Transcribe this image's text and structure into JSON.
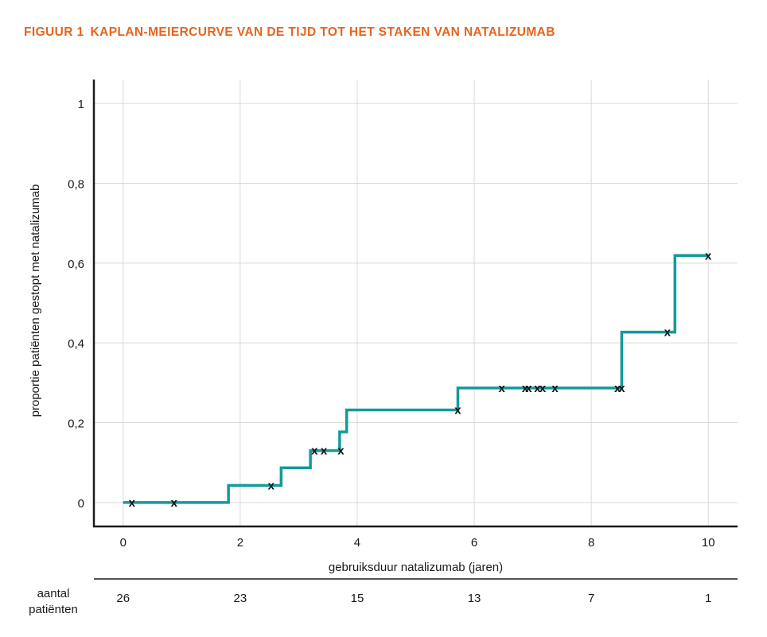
{
  "figure": {
    "label": "FIGUUR 1",
    "title": "KAPLAN-MEIERCURVE VAN DE TIJD TOT HET STAKEN VAN NATALIZUMAB"
  },
  "colors": {
    "accent": "#e8641e",
    "curve": "#139a9a",
    "grid": "#d9d9d9",
    "axis": "#1a1a1a"
  },
  "chart_data": {
    "type": "line",
    "style": "step",
    "grid": true,
    "xlabel": "gebruiksduur natalizumab (jaren)",
    "ylabel": "proportie patiënten gestopt met natalizumab",
    "xlim": [
      -0.5,
      10.5
    ],
    "ylim": [
      -0.06,
      1.06
    ],
    "x_ticks": [
      0,
      2,
      4,
      6,
      8,
      10
    ],
    "x_tick_labels": [
      "0",
      "2",
      "4",
      "6",
      "8",
      "10"
    ],
    "y_ticks": [
      0,
      0.2,
      0.4,
      0.6,
      0.8,
      1
    ],
    "y_tick_labels": [
      "0",
      "0,2",
      "0,4",
      "0,6",
      "0,8",
      "1"
    ],
    "series": [
      {
        "x": [
          0,
          1.8,
          2.7,
          3.2,
          3.7,
          3.82,
          5.72,
          8.52,
          9.43,
          10
        ],
        "y": [
          0,
          0.043,
          0.087,
          0.13,
          0.177,
          0.232,
          0.287,
          0.427,
          0.619,
          0.619
        ]
      }
    ],
    "censored": {
      "x": [
        0.15,
        0.87,
        2.53,
        3.27,
        3.43,
        3.72,
        5.72,
        6.47,
        6.87,
        6.93,
        7.08,
        7.17,
        7.38,
        8.45,
        8.52,
        9.3,
        10.0
      ],
      "y": [
        0,
        0,
        0.043,
        0.13,
        0.13,
        0.13,
        0.232,
        0.287,
        0.287,
        0.287,
        0.287,
        0.287,
        0.287,
        0.287,
        0.287,
        0.427,
        0.619
      ],
      "marker": "x"
    },
    "risk_table": {
      "label_line1": "aantal",
      "label_line2": "patiënten",
      "at": [
        0,
        2,
        4,
        6,
        8,
        10
      ],
      "values": [
        "26",
        "23",
        "15",
        "13",
        "7",
        "1"
      ]
    }
  }
}
